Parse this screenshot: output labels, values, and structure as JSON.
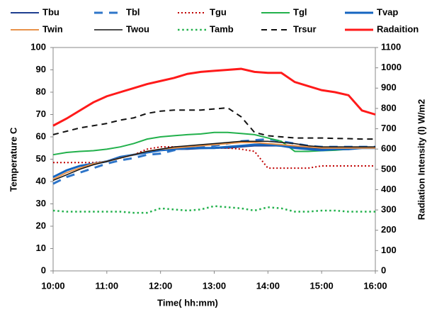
{
  "chart_data": {
    "type": "line",
    "x_label": "Time( hh:mm)",
    "y_label": "Temperature C",
    "y2_label": "Radiation  Intensity (I) W/m2",
    "x": [
      10,
      10.25,
      10.5,
      10.75,
      11,
      11.25,
      11.5,
      11.75,
      12,
      12.25,
      12.5,
      12.75,
      13,
      13.25,
      13.5,
      13.75,
      14,
      14.25,
      14.5,
      14.75,
      15,
      15.25,
      15.5,
      15.75,
      16
    ],
    "xlim": [
      10,
      16
    ],
    "xticks": [
      {
        "value": 10,
        "label": "10:00"
      },
      {
        "value": 11,
        "label": "11:00"
      },
      {
        "value": 12,
        "label": "12:00"
      },
      {
        "value": 13,
        "label": "13:00"
      },
      {
        "value": 14,
        "label": "14:00"
      },
      {
        "value": 15,
        "label": "15:00"
      },
      {
        "value": 16,
        "label": "16:00"
      }
    ],
    "ylim": [
      0,
      100
    ],
    "yticks": [
      0,
      10,
      20,
      30,
      40,
      50,
      60,
      70,
      80,
      90,
      100
    ],
    "y2lim": [
      0,
      1100
    ],
    "y2ticks": [
      0,
      100,
      200,
      300,
      400,
      500,
      600,
      700,
      800,
      900,
      1000,
      1100
    ],
    "series": [
      {
        "name": "Tbu",
        "color": "#1f3f8f",
        "dash": "solid",
        "width": 2,
        "values": [
          42,
          45,
          47,
          48,
          49,
          51,
          52,
          53.5,
          54,
          54.5,
          54.5,
          54.8,
          55,
          55,
          55.5,
          56,
          56,
          56,
          55.5,
          55,
          54.5,
          54.5,
          55,
          55,
          55
        ]
      },
      {
        "name": "Tbl",
        "color": "#2e75c9",
        "dash": "dashed",
        "width": 3,
        "values": [
          39,
          42,
          44,
          46,
          48,
          49.5,
          50.5,
          52,
          52.5,
          54,
          55,
          55.5,
          56,
          57,
          58,
          58.5,
          59,
          58,
          57,
          56,
          55.5,
          55.5,
          55.5,
          55.5,
          55.5
        ]
      },
      {
        "name": "Tgu",
        "color": "#c00000",
        "dash": "dotted",
        "width": 2,
        "values": [
          48.5,
          48.5,
          48.5,
          48.5,
          49,
          50.5,
          52,
          54.5,
          55.5,
          55.5,
          55,
          55,
          55,
          55,
          54.5,
          53.5,
          46,
          46,
          46,
          46,
          47,
          47,
          47,
          47,
          47
        ]
      },
      {
        "name": "Tgl",
        "color": "#22b14c",
        "dash": "solid",
        "width": 2,
        "values": [
          52,
          53,
          53.5,
          53.8,
          54.5,
          55.5,
          57,
          59,
          60,
          60.5,
          61,
          61.3,
          62,
          62,
          61.5,
          61,
          59.5,
          58,
          53.5,
          53.5,
          53.8,
          54,
          54.5,
          55,
          55
        ]
      },
      {
        "name": "Tvap",
        "color": "#1565c0",
        "dash": "solid",
        "width": 3,
        "values": [
          42,
          45,
          47,
          48,
          49,
          51,
          52,
          53,
          54,
          54.5,
          55,
          55,
          55,
          55.5,
          56,
          56.5,
          56.5,
          56,
          55,
          54.5,
          54,
          54.5,
          54.5,
          55,
          55
        ]
      },
      {
        "name": "Twin",
        "color": "#e8924a",
        "dash": "solid",
        "width": 2,
        "values": [
          41,
          44,
          46,
          48,
          49,
          50.5,
          52,
          53.5,
          54.5,
          55,
          55.5,
          56,
          56.5,
          57,
          57.5,
          57.5,
          57,
          56.5,
          56,
          55.5,
          55,
          55,
          55,
          55,
          55
        ]
      },
      {
        "name": "Twou",
        "color": "#111111",
        "dash": "solid",
        "width": 1.5,
        "values": [
          40.5,
          43,
          45.5,
          47.5,
          49,
          50.5,
          52,
          53.5,
          54.5,
          55.5,
          56,
          56.5,
          57,
          57.5,
          58,
          58,
          58,
          57.5,
          57,
          56,
          55.5,
          55.5,
          55.5,
          55.5,
          55.5
        ]
      },
      {
        "name": "Tamb",
        "color": "#22b14c",
        "dash": "dotted",
        "width": 2.5,
        "values": [
          27,
          26.5,
          26.5,
          26.5,
          26.5,
          26.5,
          26,
          26,
          28,
          27.5,
          27,
          27.5,
          29,
          28.5,
          28,
          27,
          28.5,
          28,
          26.5,
          26.5,
          27,
          27,
          26.5,
          26.5,
          26.5
        ]
      },
      {
        "name": "Trsur",
        "color": "#111111",
        "dash": "dashed",
        "width": 2,
        "values": [
          61,
          62.5,
          64,
          65,
          66,
          67.5,
          68.5,
          70.5,
          71.5,
          72,
          72,
          72,
          72.5,
          73,
          69,
          62,
          60.5,
          60,
          59.5,
          59.5,
          59.5,
          59.3,
          59.2,
          59,
          59
        ]
      },
      {
        "name": "Radaition",
        "color": "#ff1a1a",
        "dash": "solid",
        "width": 3,
        "axis": "y2",
        "values": [
          715,
          750,
          790,
          830,
          860,
          880,
          900,
          920,
          935,
          950,
          970,
          980,
          985,
          990,
          995,
          980,
          975,
          975,
          930,
          910,
          890,
          880,
          865,
          790,
          770
        ]
      }
    ]
  }
}
